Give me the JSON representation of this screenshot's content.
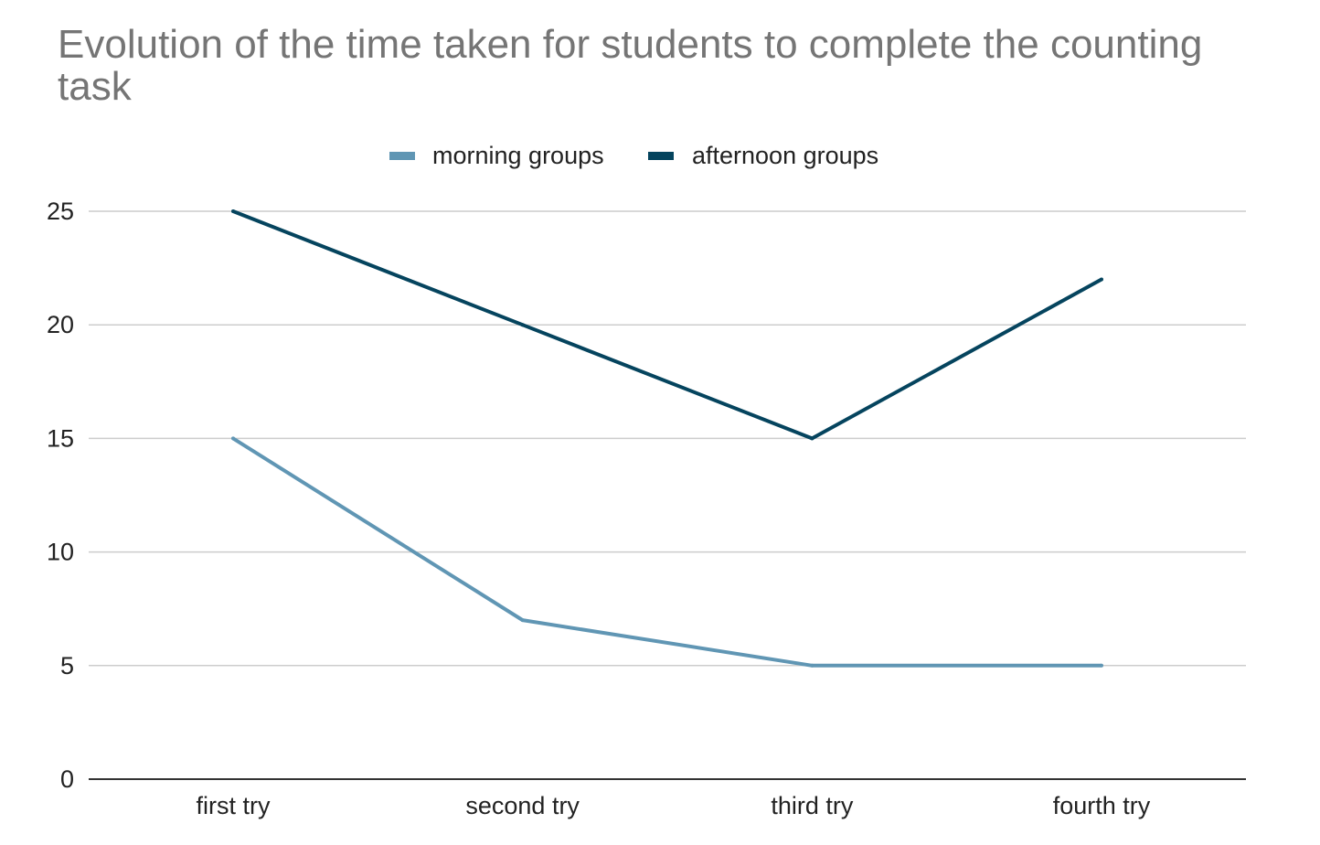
{
  "chart_data": {
    "type": "line",
    "title": "Evolution of the time taken for students to complete the counting task",
    "xlabel": "",
    "ylabel": "",
    "categories": [
      "first try",
      "second try",
      "third try",
      "fourth try"
    ],
    "series": [
      {
        "name": "morning groups",
        "values": [
          15,
          7,
          5,
          5
        ],
        "color": "#6096b4"
      },
      {
        "name": "afternoon groups",
        "values": [
          25,
          20,
          15,
          22
        ],
        "color": "#05445e"
      }
    ],
    "ylim": [
      0,
      25
    ],
    "yticks": [
      0,
      5,
      10,
      15,
      20,
      25
    ],
    "grid": true,
    "legend_position": "top"
  }
}
